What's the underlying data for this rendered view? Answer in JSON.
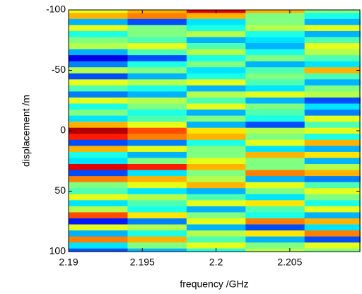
{
  "chart_data": {
    "type": "heatmap",
    "colormap": "jet",
    "clim": [
      0,
      1
    ],
    "xlabel": "frequency /GHz",
    "ylabel": "displacement /m",
    "xlim": [
      2.19,
      2.2098
    ],
    "xticks": [
      2.19,
      2.195,
      2.2,
      2.205
    ],
    "ylim": [
      -100,
      100
    ],
    "y_reversed": true,
    "yticks": [
      -100,
      -50,
      0,
      50,
      100
    ],
    "x": [
      2.192,
      2.196,
      2.2,
      2.204,
      2.208
    ],
    "y": [
      -100,
      -95,
      -90,
      -85,
      -80,
      -75,
      -70,
      -65,
      -60,
      -55,
      -50,
      -45,
      -40,
      -35,
      -30,
      -25,
      -20,
      -15,
      -10,
      -5,
      0,
      5,
      10,
      15,
      20,
      25,
      30,
      35,
      40,
      45,
      50,
      55,
      60,
      65,
      70,
      75,
      80,
      85,
      90,
      95,
      100
    ],
    "z": [
      [
        0.6,
        0.7,
        0.9,
        0.7,
        0.5
      ],
      [
        0.7,
        0.75,
        0.7,
        0.5,
        0.4
      ],
      [
        0.3,
        0.2,
        0.35,
        0.5,
        0.3
      ],
      [
        0.6,
        0.5,
        0.4,
        0.55,
        0.6
      ],
      [
        0.4,
        0.5,
        0.55,
        0.4,
        0.3
      ],
      [
        0.5,
        0.45,
        0.3,
        0.35,
        0.45
      ],
      [
        0.55,
        0.6,
        0.45,
        0.3,
        0.6
      ],
      [
        0.3,
        0.45,
        0.55,
        0.4,
        0.55
      ],
      [
        0.1,
        0.2,
        0.4,
        0.5,
        0.45
      ],
      [
        0.25,
        0.4,
        0.5,
        0.3,
        0.35
      ],
      [
        0.55,
        0.5,
        0.35,
        0.45,
        0.7
      ],
      [
        0.2,
        0.3,
        0.4,
        0.5,
        0.45
      ],
      [
        0.6,
        0.55,
        0.6,
        0.45,
        0.3
      ],
      [
        0.45,
        0.4,
        0.3,
        0.35,
        0.5
      ],
      [
        0.25,
        0.3,
        0.55,
        0.6,
        0.55
      ],
      [
        0.6,
        0.55,
        0.45,
        0.3,
        0.2
      ],
      [
        0.4,
        0.5,
        0.6,
        0.5,
        0.35
      ],
      [
        0.5,
        0.4,
        0.3,
        0.45,
        0.25
      ],
      [
        0.35,
        0.45,
        0.5,
        0.4,
        0.6
      ],
      [
        0.7,
        0.6,
        0.3,
        0.2,
        0.45
      ],
      [
        0.95,
        0.8,
        0.65,
        0.55,
        0.6
      ],
      [
        0.85,
        0.75,
        0.7,
        0.5,
        0.4
      ],
      [
        0.2,
        0.25,
        0.4,
        0.6,
        0.7
      ],
      [
        0.7,
        0.6,
        0.5,
        0.35,
        0.3
      ],
      [
        0.4,
        0.3,
        0.5,
        0.7,
        0.65
      ],
      [
        0.35,
        0.5,
        0.6,
        0.5,
        0.3
      ],
      [
        0.9,
        0.85,
        0.7,
        0.5,
        0.55
      ],
      [
        0.2,
        0.35,
        0.5,
        0.75,
        0.7
      ],
      [
        0.75,
        0.7,
        0.55,
        0.3,
        0.25
      ],
      [
        0.5,
        0.6,
        0.7,
        0.6,
        0.45
      ],
      [
        0.45,
        0.35,
        0.3,
        0.5,
        0.6
      ],
      [
        0.6,
        0.55,
        0.45,
        0.35,
        0.5
      ],
      [
        0.35,
        0.45,
        0.6,
        0.65,
        0.4
      ],
      [
        0.55,
        0.4,
        0.3,
        0.45,
        0.6
      ],
      [
        0.8,
        0.65,
        0.5,
        0.4,
        0.3
      ],
      [
        0.15,
        0.25,
        0.6,
        0.75,
        0.7
      ],
      [
        0.6,
        0.55,
        0.3,
        0.2,
        0.35
      ],
      [
        0.3,
        0.4,
        0.55,
        0.65,
        0.75
      ],
      [
        0.75,
        0.7,
        0.45,
        0.3,
        0.2
      ],
      [
        0.35,
        0.5,
        0.6,
        0.5,
        0.6
      ],
      [
        0.2,
        0.3,
        0.4,
        0.55,
        0.5
      ]
    ]
  }
}
